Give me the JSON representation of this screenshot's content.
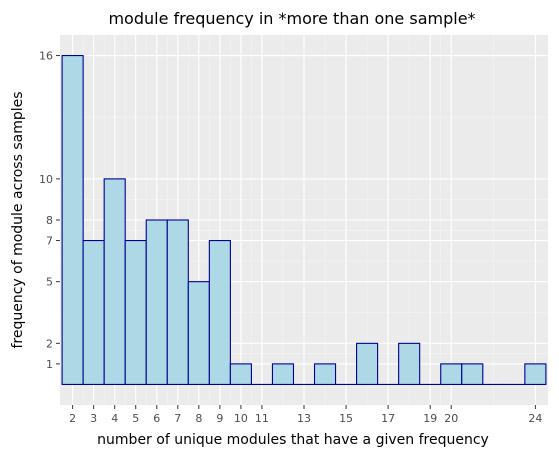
{
  "chart_data": {
    "type": "bar",
    "title": "module frequency in *more than one sample*",
    "xlabel": "number of unique modules that have a given frequency",
    "ylabel": "frequency of module across samples",
    "x": [
      2,
      3,
      4,
      5,
      6,
      7,
      8,
      9,
      10,
      11,
      12,
      13,
      14,
      15,
      16,
      17,
      18,
      19,
      20,
      21,
      22,
      23,
      24
    ],
    "values": [
      16,
      7,
      10,
      7,
      8,
      8,
      5,
      7,
      1,
      0,
      1,
      0,
      1,
      0,
      2,
      0,
      2,
      0,
      1,
      1,
      0,
      0,
      1
    ],
    "x_ticks": [
      2,
      3,
      4,
      5,
      6,
      7,
      8,
      9,
      10,
      11,
      13,
      15,
      17,
      19,
      20,
      24
    ],
    "y_ticks": [
      1,
      2,
      5,
      7,
      8,
      10,
      16
    ],
    "xlim": [
      1.4,
      24.6
    ],
    "ylim": [
      -1.0,
      17.0
    ],
    "grid": true,
    "bar_fill": "#add8e6",
    "bar_outline": "#00008b",
    "panel_background": "#ebebeb"
  }
}
